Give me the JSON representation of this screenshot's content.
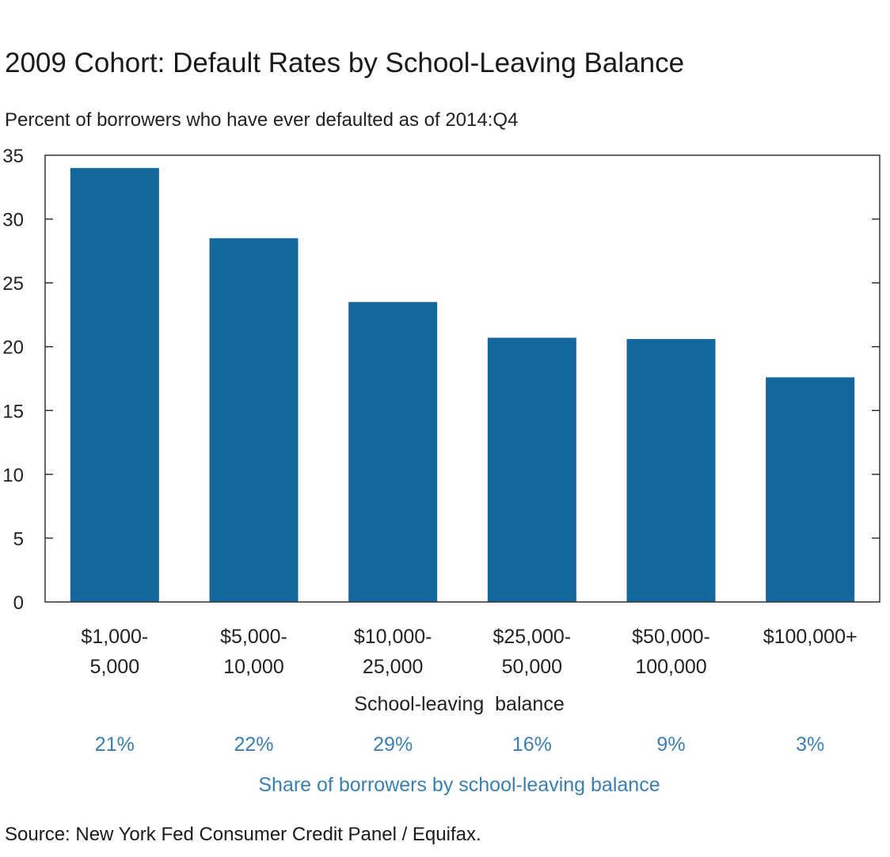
{
  "chart_data": {
    "type": "bar",
    "title": "2009 Cohort: Default Rates by School-Leaving Balance",
    "subtitle": "Percent of borrowers who have ever defaulted as of 2014:Q4",
    "categories": [
      [
        "$1,000-",
        "5,000"
      ],
      [
        "$5,000-",
        "10,000"
      ],
      [
        "$10,000-",
        "25,000"
      ],
      [
        "$25,000-",
        "50,000"
      ],
      [
        "$50,000-",
        "100,000"
      ],
      [
        "$100,000+"
      ]
    ],
    "values": [
      34,
      28.5,
      23.5,
      20.7,
      20.6,
      17.6
    ],
    "ylim": [
      0,
      35
    ],
    "yticks": [
      "0",
      "5",
      "10",
      "15",
      "20",
      "25",
      "30",
      "35"
    ],
    "xlabel": "School-leaving  balance",
    "ylabel": "",
    "shares": [
      "21%",
      "22%",
      "29%",
      "16%",
      "9%",
      "3%"
    ],
    "shares_label": "Share of borrowers by school-leaving balance",
    "bar_color": "#14689e",
    "share_color": "#3a7fb0",
    "grid": false,
    "legend": "none"
  },
  "source": "Source: New York Fed Consumer Credit Panel / Equifax."
}
